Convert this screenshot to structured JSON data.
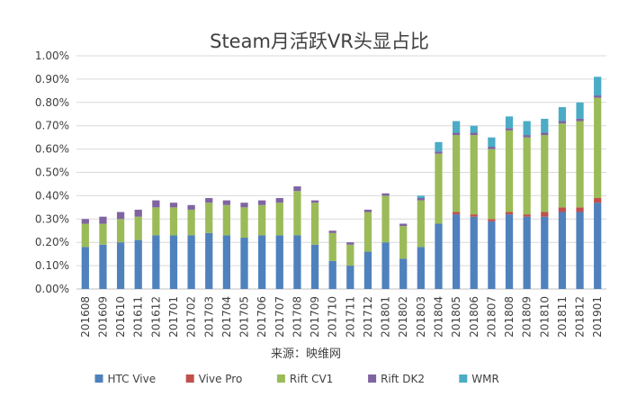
{
  "chart_data": {
    "type": "bar",
    "stacked": true,
    "title": "Steam月活跃VR头显占比",
    "source_note": "来源：映维网",
    "ylim": [
      0,
      1.0
    ],
    "yticks": [
      "0.00%",
      "0.10%",
      "0.20%",
      "0.30%",
      "0.40%",
      "0.50%",
      "0.60%",
      "0.70%",
      "0.80%",
      "0.90%",
      "1.00%"
    ],
    "grid": true,
    "legend_position": "bottom",
    "categories": [
      "201608",
      "201609",
      "201610",
      "201611",
      "201612",
      "201701",
      "201702",
      "201703",
      "201704",
      "201705",
      "201706",
      "201707",
      "201708",
      "201709",
      "201710",
      "201711",
      "201712",
      "201801",
      "201802",
      "201803",
      "201804",
      "201805",
      "201806",
      "201807",
      "201808",
      "201809",
      "201810",
      "201811",
      "201812",
      "201901"
    ],
    "series": [
      {
        "name": "HTC Vive",
        "color": "#4f81bd",
        "values": [
          0.18,
          0.19,
          0.2,
          0.21,
          0.23,
          0.23,
          0.23,
          0.24,
          0.23,
          0.22,
          0.23,
          0.23,
          0.23,
          0.19,
          0.12,
          0.1,
          0.16,
          0.2,
          0.13,
          0.18,
          0.28,
          0.32,
          0.31,
          0.29,
          0.32,
          0.31,
          0.31,
          0.33,
          0.33,
          0.37
        ]
      },
      {
        "name": "Vive Pro",
        "color": "#c0504d",
        "values": [
          0,
          0,
          0,
          0,
          0,
          0,
          0,
          0,
          0,
          0,
          0,
          0,
          0,
          0,
          0,
          0,
          0,
          0,
          0,
          0,
          0,
          0.01,
          0.01,
          0.01,
          0.01,
          0.01,
          0.02,
          0.02,
          0.02,
          0.02
        ]
      },
      {
        "name": "Rift CV1",
        "color": "#9bbb59",
        "values": [
          0.1,
          0.09,
          0.1,
          0.1,
          0.12,
          0.12,
          0.11,
          0.13,
          0.13,
          0.13,
          0.13,
          0.14,
          0.19,
          0.18,
          0.12,
          0.09,
          0.17,
          0.2,
          0.14,
          0.2,
          0.3,
          0.33,
          0.34,
          0.3,
          0.35,
          0.33,
          0.33,
          0.36,
          0.37,
          0.43
        ]
      },
      {
        "name": "Rift DK2",
        "color": "#8064a2",
        "values": [
          0.02,
          0.03,
          0.03,
          0.03,
          0.03,
          0.02,
          0.02,
          0.02,
          0.02,
          0.02,
          0.02,
          0.02,
          0.02,
          0.01,
          0.01,
          0.01,
          0.01,
          0.01,
          0.01,
          0.01,
          0.01,
          0.01,
          0.01,
          0.01,
          0.01,
          0.01,
          0.01,
          0.01,
          0.01,
          0.01
        ]
      },
      {
        "name": "WMR",
        "color": "#4bacc6",
        "values": [
          0,
          0,
          0,
          0,
          0,
          0,
          0,
          0,
          0,
          0,
          0,
          0,
          0,
          0,
          0,
          0,
          0,
          0,
          0,
          0.01,
          0.04,
          0.05,
          0.03,
          0.04,
          0.05,
          0.06,
          0.06,
          0.06,
          0.07,
          0.08
        ]
      }
    ]
  }
}
